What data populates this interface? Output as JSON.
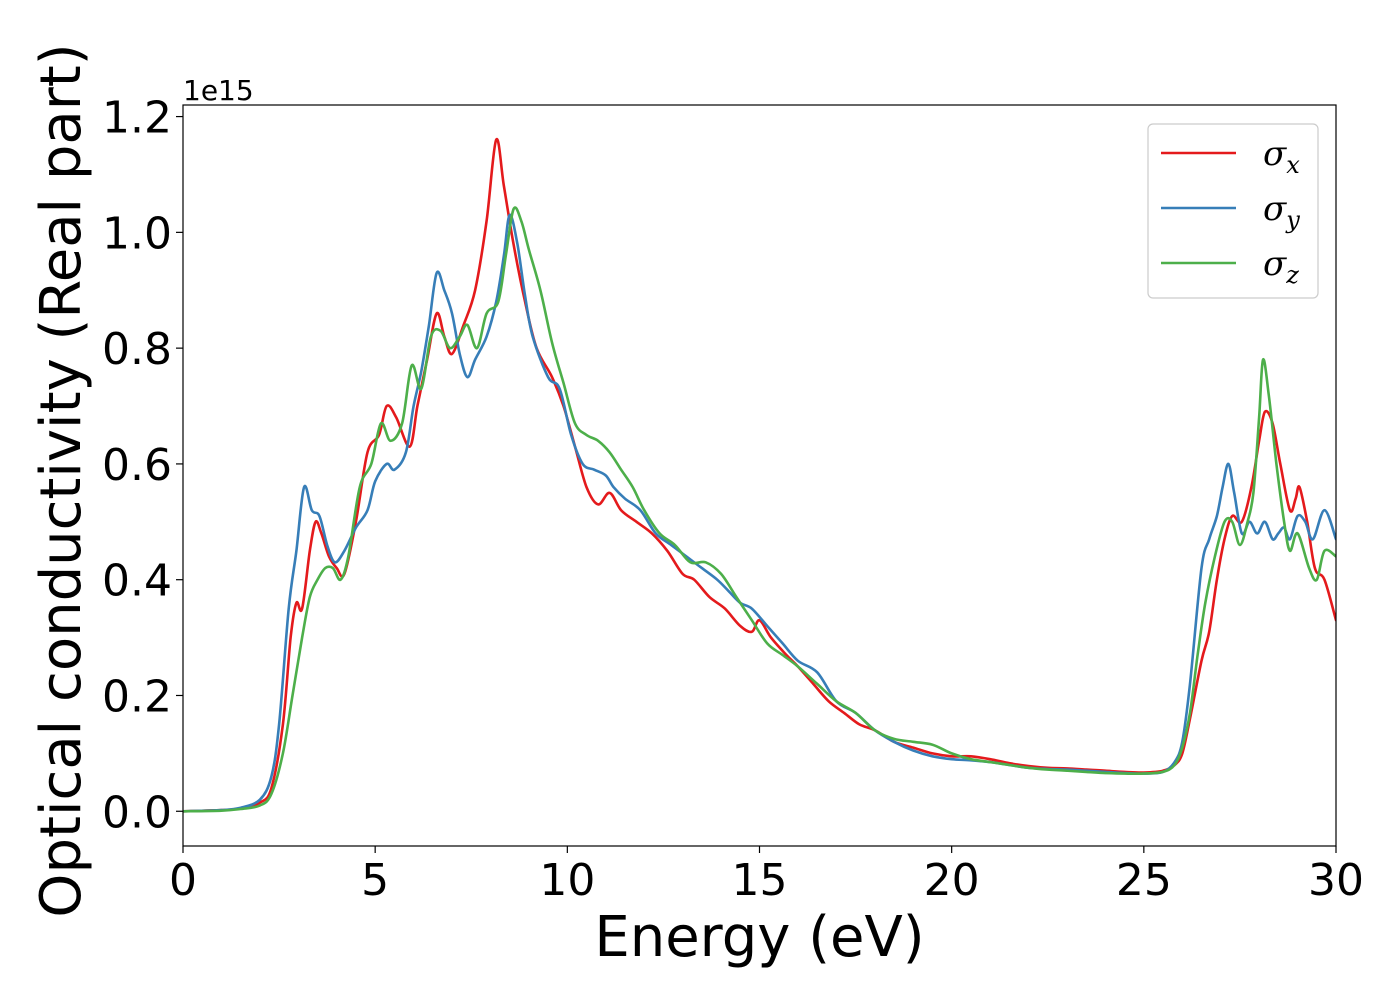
{
  "chart_data": {
    "type": "line",
    "title": "",
    "xlabel": "Energy (eV)",
    "ylabel": "Optical conductivity (Real part)",
    "y_offset_label": "1e15",
    "xlim": [
      0,
      30
    ],
    "ylim": [
      -0.06,
      1.22
    ],
    "x_ticks": [
      0,
      5,
      10,
      15,
      20,
      25,
      30
    ],
    "x_tick_labels": [
      "0",
      "5",
      "10",
      "15",
      "20",
      "25",
      "30"
    ],
    "y_ticks": [
      0.0,
      0.2,
      0.4,
      0.6,
      0.8,
      1.0,
      1.2
    ],
    "y_tick_labels": [
      "0.0",
      "0.2",
      "0.4",
      "0.6",
      "0.8",
      "1.0",
      "1.2"
    ],
    "grid": false,
    "legend_position": "top-right",
    "series": [
      {
        "name": "σx",
        "legend_base": "σ",
        "legend_sub": "x",
        "color": "#e41a1c",
        "points": [
          [
            0,
            0.0
          ],
          [
            1,
            0.002
          ],
          [
            1.5,
            0.005
          ],
          [
            2,
            0.015
          ],
          [
            2.3,
            0.04
          ],
          [
            2.6,
            0.15
          ],
          [
            2.8,
            0.3
          ],
          [
            2.95,
            0.36
          ],
          [
            3.1,
            0.35
          ],
          [
            3.3,
            0.45
          ],
          [
            3.45,
            0.5
          ],
          [
            3.6,
            0.48
          ],
          [
            3.8,
            0.44
          ],
          [
            4.0,
            0.42
          ],
          [
            4.2,
            0.41
          ],
          [
            4.5,
            0.5
          ],
          [
            4.8,
            0.62
          ],
          [
            5.1,
            0.65
          ],
          [
            5.3,
            0.7
          ],
          [
            5.55,
            0.68
          ],
          [
            5.9,
            0.63
          ],
          [
            6.1,
            0.7
          ],
          [
            6.35,
            0.78
          ],
          [
            6.6,
            0.86
          ],
          [
            6.8,
            0.82
          ],
          [
            7.0,
            0.79
          ],
          [
            7.3,
            0.84
          ],
          [
            7.6,
            0.9
          ],
          [
            7.9,
            1.02
          ],
          [
            8.15,
            1.16
          ],
          [
            8.35,
            1.08
          ],
          [
            8.6,
            0.98
          ],
          [
            8.9,
            0.88
          ],
          [
            9.2,
            0.8
          ],
          [
            9.6,
            0.75
          ],
          [
            9.9,
            0.7
          ],
          [
            10.2,
            0.63
          ],
          [
            10.5,
            0.56
          ],
          [
            10.8,
            0.53
          ],
          [
            11.1,
            0.55
          ],
          [
            11.4,
            0.52
          ],
          [
            11.8,
            0.5
          ],
          [
            12.2,
            0.48
          ],
          [
            12.6,
            0.45
          ],
          [
            13.0,
            0.41
          ],
          [
            13.3,
            0.4
          ],
          [
            13.7,
            0.37
          ],
          [
            14.1,
            0.35
          ],
          [
            14.5,
            0.32
          ],
          [
            14.8,
            0.31
          ],
          [
            15.0,
            0.33
          ],
          [
            15.3,
            0.3
          ],
          [
            15.7,
            0.27
          ],
          [
            16.0,
            0.25
          ],
          [
            16.4,
            0.22
          ],
          [
            16.8,
            0.19
          ],
          [
            17.2,
            0.17
          ],
          [
            17.6,
            0.15
          ],
          [
            18.0,
            0.14
          ],
          [
            18.5,
            0.12
          ],
          [
            19.0,
            0.11
          ],
          [
            19.5,
            0.1
          ],
          [
            20.0,
            0.095
          ],
          [
            20.5,
            0.095
          ],
          [
            21.0,
            0.09
          ],
          [
            21.5,
            0.083
          ],
          [
            22.0,
            0.078
          ],
          [
            22.5,
            0.075
          ],
          [
            23.0,
            0.074
          ],
          [
            23.5,
            0.072
          ],
          [
            24.0,
            0.07
          ],
          [
            24.5,
            0.068
          ],
          [
            25.0,
            0.067
          ],
          [
            25.5,
            0.07
          ],
          [
            25.8,
            0.08
          ],
          [
            26.0,
            0.1
          ],
          [
            26.2,
            0.16
          ],
          [
            26.5,
            0.26
          ],
          [
            26.7,
            0.31
          ],
          [
            26.9,
            0.4
          ],
          [
            27.1,
            0.47
          ],
          [
            27.3,
            0.51
          ],
          [
            27.55,
            0.5
          ],
          [
            27.8,
            0.56
          ],
          [
            28.0,
            0.64
          ],
          [
            28.15,
            0.69
          ],
          [
            28.35,
            0.67
          ],
          [
            28.55,
            0.6
          ],
          [
            28.8,
            0.52
          ],
          [
            28.95,
            0.54
          ],
          [
            29.05,
            0.56
          ],
          [
            29.25,
            0.5
          ],
          [
            29.45,
            0.42
          ],
          [
            29.7,
            0.4
          ],
          [
            30,
            0.33
          ]
        ]
      },
      {
        "name": "σy",
        "legend_base": "σ",
        "legend_sub": "y",
        "color": "#377eb8",
        "points": [
          [
            0,
            0.0
          ],
          [
            1,
            0.002
          ],
          [
            1.5,
            0.006
          ],
          [
            2,
            0.02
          ],
          [
            2.3,
            0.06
          ],
          [
            2.5,
            0.15
          ],
          [
            2.75,
            0.35
          ],
          [
            2.95,
            0.45
          ],
          [
            3.15,
            0.56
          ],
          [
            3.35,
            0.52
          ],
          [
            3.55,
            0.51
          ],
          [
            3.75,
            0.46
          ],
          [
            3.95,
            0.43
          ],
          [
            4.2,
            0.45
          ],
          [
            4.5,
            0.49
          ],
          [
            4.8,
            0.52
          ],
          [
            5.0,
            0.57
          ],
          [
            5.3,
            0.6
          ],
          [
            5.5,
            0.59
          ],
          [
            5.8,
            0.62
          ],
          [
            6.0,
            0.7
          ],
          [
            6.2,
            0.76
          ],
          [
            6.4,
            0.84
          ],
          [
            6.6,
            0.93
          ],
          [
            6.8,
            0.9
          ],
          [
            7.0,
            0.86
          ],
          [
            7.2,
            0.79
          ],
          [
            7.4,
            0.75
          ],
          [
            7.6,
            0.78
          ],
          [
            7.9,
            0.82
          ],
          [
            8.15,
            0.88
          ],
          [
            8.35,
            0.96
          ],
          [
            8.5,
            1.03
          ],
          [
            8.7,
            0.98
          ],
          [
            8.9,
            0.89
          ],
          [
            9.1,
            0.82
          ],
          [
            9.5,
            0.75
          ],
          [
            9.8,
            0.73
          ],
          [
            10.1,
            0.65
          ],
          [
            10.4,
            0.6
          ],
          [
            10.7,
            0.59
          ],
          [
            11.0,
            0.58
          ],
          [
            11.2,
            0.56
          ],
          [
            11.5,
            0.54
          ],
          [
            11.9,
            0.52
          ],
          [
            12.3,
            0.48
          ],
          [
            12.7,
            0.46
          ],
          [
            13.1,
            0.44
          ],
          [
            13.5,
            0.42
          ],
          [
            13.9,
            0.4
          ],
          [
            14.2,
            0.38
          ],
          [
            14.5,
            0.36
          ],
          [
            14.8,
            0.35
          ],
          [
            15.2,
            0.32
          ],
          [
            15.6,
            0.29
          ],
          [
            16.0,
            0.26
          ],
          [
            16.5,
            0.24
          ],
          [
            17.0,
            0.19
          ],
          [
            17.5,
            0.17
          ],
          [
            18.0,
            0.14
          ],
          [
            18.5,
            0.12
          ],
          [
            19.0,
            0.105
          ],
          [
            19.5,
            0.095
          ],
          [
            20.0,
            0.09
          ],
          [
            20.5,
            0.088
          ],
          [
            21.0,
            0.085
          ],
          [
            21.5,
            0.08
          ],
          [
            22.0,
            0.075
          ],
          [
            22.5,
            0.073
          ],
          [
            23.0,
            0.072
          ],
          [
            23.5,
            0.07
          ],
          [
            24.0,
            0.068
          ],
          [
            24.5,
            0.066
          ],
          [
            25.0,
            0.065
          ],
          [
            25.5,
            0.068
          ],
          [
            25.8,
            0.085
          ],
          [
            26.0,
            0.12
          ],
          [
            26.2,
            0.22
          ],
          [
            26.5,
            0.42
          ],
          [
            26.7,
            0.47
          ],
          [
            26.9,
            0.51
          ],
          [
            27.05,
            0.56
          ],
          [
            27.2,
            0.6
          ],
          [
            27.35,
            0.55
          ],
          [
            27.55,
            0.48
          ],
          [
            27.75,
            0.5
          ],
          [
            27.95,
            0.48
          ],
          [
            28.15,
            0.5
          ],
          [
            28.35,
            0.47
          ],
          [
            28.5,
            0.48
          ],
          [
            28.65,
            0.49
          ],
          [
            28.8,
            0.47
          ],
          [
            29.0,
            0.51
          ],
          [
            29.2,
            0.5
          ],
          [
            29.4,
            0.47
          ],
          [
            29.7,
            0.52
          ],
          [
            30,
            0.47
          ]
        ]
      },
      {
        "name": "σz",
        "legend_base": "σ",
        "legend_sub": "z",
        "color": "#4daf4a",
        "points": [
          [
            0,
            0.0
          ],
          [
            1,
            0.001
          ],
          [
            1.5,
            0.004
          ],
          [
            2,
            0.01
          ],
          [
            2.3,
            0.03
          ],
          [
            2.6,
            0.1
          ],
          [
            2.85,
            0.2
          ],
          [
            3.1,
            0.3
          ],
          [
            3.3,
            0.37
          ],
          [
            3.5,
            0.4
          ],
          [
            3.7,
            0.42
          ],
          [
            3.9,
            0.42
          ],
          [
            4.1,
            0.4
          ],
          [
            4.3,
            0.44
          ],
          [
            4.6,
            0.56
          ],
          [
            4.9,
            0.6
          ],
          [
            5.15,
            0.67
          ],
          [
            5.4,
            0.64
          ],
          [
            5.7,
            0.67
          ],
          [
            5.95,
            0.77
          ],
          [
            6.2,
            0.73
          ],
          [
            6.45,
            0.82
          ],
          [
            6.7,
            0.83
          ],
          [
            6.95,
            0.8
          ],
          [
            7.2,
            0.82
          ],
          [
            7.4,
            0.84
          ],
          [
            7.65,
            0.8
          ],
          [
            7.9,
            0.86
          ],
          [
            8.2,
            0.88
          ],
          [
            8.4,
            0.96
          ],
          [
            8.6,
            1.04
          ],
          [
            8.8,
            1.02
          ],
          [
            9.0,
            0.97
          ],
          [
            9.3,
            0.9
          ],
          [
            9.6,
            0.81
          ],
          [
            9.9,
            0.74
          ],
          [
            10.2,
            0.67
          ],
          [
            10.5,
            0.65
          ],
          [
            10.8,
            0.64
          ],
          [
            11.1,
            0.62
          ],
          [
            11.4,
            0.59
          ],
          [
            11.7,
            0.56
          ],
          [
            12.0,
            0.52
          ],
          [
            12.4,
            0.48
          ],
          [
            12.8,
            0.46
          ],
          [
            13.2,
            0.43
          ],
          [
            13.6,
            0.43
          ],
          [
            14.0,
            0.41
          ],
          [
            14.4,
            0.37
          ],
          [
            14.8,
            0.33
          ],
          [
            15.2,
            0.29
          ],
          [
            15.6,
            0.27
          ],
          [
            16.0,
            0.25
          ],
          [
            16.5,
            0.22
          ],
          [
            17.0,
            0.19
          ],
          [
            17.5,
            0.17
          ],
          [
            18.0,
            0.14
          ],
          [
            18.5,
            0.125
          ],
          [
            19.0,
            0.12
          ],
          [
            19.5,
            0.115
          ],
          [
            20.0,
            0.1
          ],
          [
            20.5,
            0.09
          ],
          [
            21.0,
            0.085
          ],
          [
            21.5,
            0.08
          ],
          [
            22.0,
            0.075
          ],
          [
            22.5,
            0.072
          ],
          [
            23.0,
            0.07
          ],
          [
            23.5,
            0.068
          ],
          [
            24.0,
            0.066
          ],
          [
            24.5,
            0.065
          ],
          [
            25.0,
            0.065
          ],
          [
            25.5,
            0.068
          ],
          [
            25.8,
            0.08
          ],
          [
            26.0,
            0.11
          ],
          [
            26.2,
            0.17
          ],
          [
            26.4,
            0.27
          ],
          [
            26.6,
            0.36
          ],
          [
            26.85,
            0.44
          ],
          [
            27.1,
            0.5
          ],
          [
            27.3,
            0.5
          ],
          [
            27.5,
            0.46
          ],
          [
            27.7,
            0.5
          ],
          [
            27.85,
            0.55
          ],
          [
            28.0,
            0.68
          ],
          [
            28.1,
            0.78
          ],
          [
            28.25,
            0.72
          ],
          [
            28.45,
            0.6
          ],
          [
            28.65,
            0.5
          ],
          [
            28.8,
            0.45
          ],
          [
            29.0,
            0.48
          ],
          [
            29.3,
            0.42
          ],
          [
            29.5,
            0.4
          ],
          [
            29.7,
            0.45
          ],
          [
            30,
            0.44
          ]
        ]
      }
    ]
  }
}
